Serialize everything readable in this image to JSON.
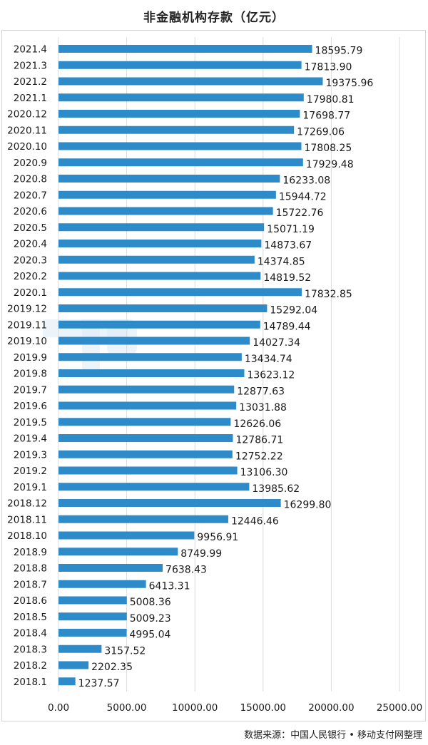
{
  "chart_data": {
    "type": "bar",
    "orientation": "horizontal",
    "title": "非金融机构存款（亿元）",
    "xlabel": "",
    "ylabel": "",
    "xlim": [
      0,
      25000
    ],
    "grid": true,
    "bar_color": "#2d8bc9",
    "watermark_color": "#dbe9f5",
    "categories": [
      "2021.4",
      "2021.3",
      "2021.2",
      "2021.1",
      "2020.12",
      "2020.11",
      "2020.10",
      "2020.9",
      "2020.8",
      "2020.7",
      "2020.6",
      "2020.5",
      "2020.4",
      "2020.3",
      "2020.2",
      "2020.1",
      "2019.12",
      "2019.11",
      "2019.10",
      "2019.9",
      "2019.8",
      "2019.7",
      "2019.6",
      "2019.5",
      "2019.4",
      "2019.3",
      "2019.2",
      "2019.1",
      "2018.12",
      "2018.11",
      "2018.10",
      "2018.9",
      "2018.8",
      "2018.7",
      "2018.6",
      "2018.5",
      "2018.4",
      "2018.3",
      "2018.2",
      "2018.1"
    ],
    "values": [
      18595.79,
      17813.9,
      19375.96,
      17980.81,
      17698.77,
      17269.06,
      17808.25,
      17929.48,
      16233.08,
      15944.72,
      15722.76,
      15071.19,
      14873.67,
      14374.85,
      14819.52,
      17832.85,
      15292.04,
      14789.44,
      14027.34,
      13434.74,
      13623.12,
      12877.63,
      13031.88,
      12626.06,
      12786.71,
      12752.22,
      13106.3,
      13985.62,
      16299.8,
      12446.46,
      9956.91,
      8749.99,
      7638.43,
      6413.31,
      5008.36,
      5009.23,
      4995.04,
      3157.52,
      2202.35,
      1237.57
    ],
    "value_labels": [
      "18595.79",
      "17813.90",
      "19375.96",
      "17980.81",
      "17698.77",
      "17269.06",
      "17808.25",
      "17929.48",
      "16233.08",
      "15944.72",
      "15722.76",
      "15071.19",
      "14873.67",
      "14374.85",
      "14819.52",
      "17832.85",
      "15292.04",
      "14789.44",
      "14027.34",
      "13434.74",
      "13623.12",
      "12877.63",
      "13031.88",
      "12626.06",
      "12786.71",
      "12752.22",
      "13106.30",
      "13985.62",
      "16299.80",
      "12446.46",
      "9956.91",
      "8749.99",
      "7638.43",
      "6413.31",
      "5008.36",
      "5009.23",
      "4995.04",
      "3157.52",
      "2202.35",
      "1237.57"
    ],
    "x_ticks": [
      "0.00",
      "5000.00",
      "10000.00",
      "15000.00",
      "20000.00",
      "25000.00"
    ]
  },
  "source": "数据来源：中国人民银行 • 移动支付网整理"
}
